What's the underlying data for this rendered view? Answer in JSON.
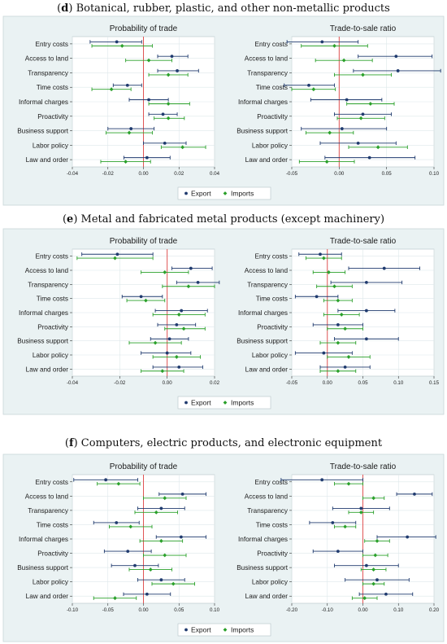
{
  "sections": [
    {
      "letter": "d",
      "title": "Botanical, rubber, plastic, and other non-metallic products",
      "chart_data": [
        {
          "type": "scatter",
          "title": "Probability of trade",
          "categories": [
            "Entry costs",
            "Access to land",
            "Transparency",
            "Time costs",
            "Informal charges",
            "Proactivity",
            "Business support",
            "Labor policy",
            "Law and order"
          ],
          "xlim": [
            -0.04,
            0.04
          ],
          "xticks": [
            -0.04,
            -0.02,
            0,
            0.02,
            0.04
          ],
          "xtick_labels": [
            "-0.04",
            "-0.02",
            "0.00",
            "0.02",
            "0.04"
          ],
          "grid": true,
          "series": [
            {
              "name": "Export",
              "values": [
                -0.015,
                0.016,
                0.019,
                -0.009,
                0.003,
                0.011,
                -0.007,
                0.012,
                0.002
              ],
              "low": [
                -0.03,
                0.008,
                0.008,
                -0.017,
                -0.008,
                0.003,
                -0.02,
                0.0,
                -0.011
              ],
              "high": [
                -0.001,
                0.025,
                0.031,
                -0.001,
                0.014,
                0.019,
                0.006,
                0.024,
                0.015
              ]
            },
            {
              "name": "Imports",
              "values": [
                -0.012,
                0.003,
                0.014,
                -0.018,
                0.014,
                0.014,
                -0.008,
                0.022,
                -0.01
              ],
              "low": [
                -0.029,
                -0.01,
                0.003,
                -0.029,
                0.003,
                0.006,
                -0.021,
                0.01,
                -0.024
              ],
              "high": [
                0.005,
                0.016,
                0.025,
                -0.007,
                0.026,
                0.023,
                0.005,
                0.035,
                0.004
              ]
            }
          ]
        },
        {
          "type": "scatter",
          "title": "Trade-to-sale ratio",
          "categories": [
            "Entry costs",
            "Access to land",
            "Transparency",
            "Time costs",
            "Informal charges",
            "Proactivity",
            "Business support",
            "Labor policy",
            "Law and order"
          ],
          "xlim": [
            -0.05,
            0.1
          ],
          "xticks": [
            -0.05,
            0,
            0.05,
            0.1
          ],
          "xtick_labels": [
            "-0.05",
            "0.00",
            "0.05",
            "0.10"
          ],
          "grid": true,
          "series": [
            {
              "name": "Export",
              "values": [
                -0.018,
                0.06,
                0.062,
                -0.032,
                0.008,
                0.025,
                0.003,
                0.02,
                0.032
              ],
              "low": [
                -0.055,
                0.02,
                0.015,
                -0.058,
                -0.03,
                -0.005,
                -0.04,
                -0.02,
                -0.015
              ],
              "high": [
                0.02,
                0.098,
                0.107,
                -0.005,
                0.045,
                0.055,
                0.05,
                0.06,
                0.08
              ]
            },
            {
              "name": "Imports",
              "values": [
                -0.005,
                0.005,
                0.025,
                -0.027,
                0.033,
                0.023,
                -0.01,
                0.041,
                -0.013
              ],
              "low": [
                -0.04,
                -0.025,
                -0.005,
                -0.05,
                0.008,
                -0.002,
                -0.035,
                0.01,
                -0.042
              ],
              "high": [
                0.03,
                0.035,
                0.055,
                -0.004,
                0.058,
                0.048,
                0.015,
                0.072,
                0.016
              ]
            }
          ]
        }
      ]
    },
    {
      "letter": "e",
      "title": "Metal and fabricated metal products (except machinery)",
      "chart_data": [
        {
          "type": "scatter",
          "title": "Probability of trade",
          "categories": [
            "Entry costs",
            "Access to land",
            "Transparency",
            "Time costs",
            "Informal charges",
            "Proactivity",
            "Business support",
            "Labor policy",
            "Law and order"
          ],
          "xlim": [
            -0.04,
            0.02
          ],
          "xticks": [
            -0.04,
            -0.02,
            0,
            0.02
          ],
          "xtick_labels": [
            "-0.04",
            "-0.02",
            "0.00",
            "0.02"
          ],
          "grid": true,
          "series": [
            {
              "name": "Export",
              "values": [
                -0.021,
                0.01,
                0.013,
                -0.011,
                0.006,
                0.004,
                0.001,
                0.0,
                0.005
              ],
              "low": [
                -0.036,
                0.002,
                0.004,
                -0.019,
                -0.005,
                -0.004,
                -0.007,
                -0.011,
                -0.006
              ],
              "high": [
                -0.006,
                0.019,
                0.022,
                -0.002,
                0.017,
                0.012,
                0.009,
                0.01,
                0.015
              ]
            },
            {
              "name": "Imports",
              "values": [
                -0.022,
                -0.001,
                0.009,
                -0.009,
                0.005,
                0.007,
                -0.005,
                0.004,
                -0.002
              ],
              "low": [
                -0.038,
                -0.011,
                -0.002,
                -0.017,
                -0.006,
                -0.001,
                -0.016,
                -0.006,
                -0.011
              ],
              "high": [
                -0.006,
                0.009,
                0.02,
                -0.001,
                0.016,
                0.016,
                0.006,
                0.014,
                0.007
              ]
            }
          ]
        },
        {
          "type": "scatter",
          "title": "Trade-to-sale ratio",
          "categories": [
            "Entry costs",
            "Access to land",
            "Transparency",
            "Time costs",
            "Informal charges",
            "Proactivity",
            "Business support",
            "Labor policy",
            "Law and order"
          ],
          "xlim": [
            -0.05,
            0.15
          ],
          "xticks": [
            -0.05,
            0,
            0.05,
            0.1,
            0.15
          ],
          "xtick_labels": [
            "-0.05",
            "0.00",
            "0.05",
            "0.10",
            "0.15"
          ],
          "grid": true,
          "series": [
            {
              "name": "Export",
              "values": [
                -0.01,
                0.08,
                0.055,
                -0.015,
                0.055,
                0.015,
                0.055,
                -0.005,
                0.025
              ],
              "low": [
                -0.04,
                0.03,
                0.005,
                -0.045,
                0.015,
                -0.02,
                0.01,
                -0.045,
                -0.01
              ],
              "high": [
                0.02,
                0.13,
                0.105,
                0.015,
                0.095,
                0.05,
                0.1,
                0.035,
                0.06
              ]
            },
            {
              "name": "Imports",
              "values": [
                -0.005,
                0.002,
                0.01,
                0.015,
                0.02,
                0.025,
                0.015,
                0.03,
                0.015
              ],
              "low": [
                -0.03,
                -0.02,
                -0.015,
                -0.005,
                -0.005,
                0.0,
                -0.01,
                0.0,
                -0.01
              ],
              "high": [
                0.02,
                0.025,
                0.035,
                0.035,
                0.045,
                0.05,
                0.04,
                0.06,
                0.04
              ]
            }
          ]
        }
      ]
    },
    {
      "letter": "f",
      "title": "Computers, electric products, and electronic equipment",
      "chart_data": [
        {
          "type": "scatter",
          "title": "Probability of trade",
          "categories": [
            "Entry costs",
            "Access to land",
            "Transparency",
            "Time costs",
            "Informal charges",
            "Proactivity",
            "Business support",
            "Labor policy",
            "Law and order"
          ],
          "xlim": [
            -0.1,
            0.1
          ],
          "xticks": [
            -0.1,
            -0.05,
            0,
            0.05,
            0.1
          ],
          "xtick_labels": [
            "-0.10",
            "-0.05",
            "0.00",
            "0.05",
            "0.10"
          ],
          "grid": true,
          "series": [
            {
              "name": "Export",
              "values": [
                -0.053,
                0.055,
                0.025,
                -0.038,
                0.053,
                -0.022,
                -0.012,
                0.025,
                0.005
              ],
              "low": [
                -0.098,
                0.022,
                -0.008,
                -0.07,
                0.018,
                -0.055,
                -0.045,
                -0.008,
                -0.028
              ],
              "high": [
                -0.008,
                0.088,
                0.058,
                -0.006,
                0.088,
                0.011,
                0.021,
                0.058,
                0.038
              ]
            },
            {
              "name": "Imports",
              "values": [
                -0.035,
                0.03,
                0.018,
                -0.018,
                0.025,
                0.03,
                0.01,
                0.042,
                -0.04
              ],
              "low": [
                -0.065,
                0.0,
                -0.012,
                -0.048,
                -0.005,
                0.0,
                -0.02,
                0.012,
                -0.07
              ],
              "high": [
                -0.005,
                0.06,
                0.048,
                0.012,
                0.055,
                0.06,
                0.04,
                0.072,
                -0.01
              ]
            }
          ]
        },
        {
          "type": "scatter",
          "title": "Trade-to-sale ratio",
          "categories": [
            "Entry costs",
            "Access to land",
            "Transparency",
            "Time costs",
            "Informal charges",
            "Proactivity",
            "Business support",
            "Labor policy",
            "Law and order"
          ],
          "xlim": [
            -0.2,
            0.2
          ],
          "xticks": [
            -0.2,
            -0.1,
            0,
            0.1,
            0.2
          ],
          "xtick_labels": [
            "-0.20",
            "-0.10",
            "0.00",
            "0.10",
            "0.20"
          ],
          "grid": true,
          "series": [
            {
              "name": "Export",
              "values": [
                -0.115,
                0.145,
                -0.005,
                -0.085,
                0.125,
                -0.07,
                0.01,
                0.04,
                0.065
              ],
              "low": [
                -0.23,
                0.095,
                -0.085,
                -0.15,
                0.04,
                -0.14,
                -0.08,
                -0.05,
                -0.01
              ],
              "high": [
                0.0,
                0.195,
                0.075,
                -0.02,
                0.205,
                0.0,
                0.1,
                0.13,
                0.14
              ]
            },
            {
              "name": "Imports",
              "values": [
                -0.04,
                0.03,
                -0.005,
                -0.05,
                0.04,
                0.035,
                0.03,
                0.03,
                0.005
              ],
              "low": [
                -0.08,
                0.0,
                -0.04,
                -0.08,
                0.005,
                0.0,
                -0.005,
                0.0,
                -0.03
              ],
              "high": [
                0.0,
                0.06,
                0.03,
                -0.02,
                0.075,
                0.07,
                0.065,
                0.06,
                0.04
              ]
            }
          ]
        }
      ]
    }
  ],
  "legend": {
    "export_label": "Export",
    "imports_label": "Imports",
    "placement": "bottom"
  },
  "colors": {
    "panel_bg": "#eaf2f3",
    "plot_bg": "#ffffff",
    "grid": "#dde8ea",
    "export": "#1f3a6e",
    "imports": "#2aa02a",
    "zero_line": "#e05555",
    "frame": "#c9d6d8"
  }
}
